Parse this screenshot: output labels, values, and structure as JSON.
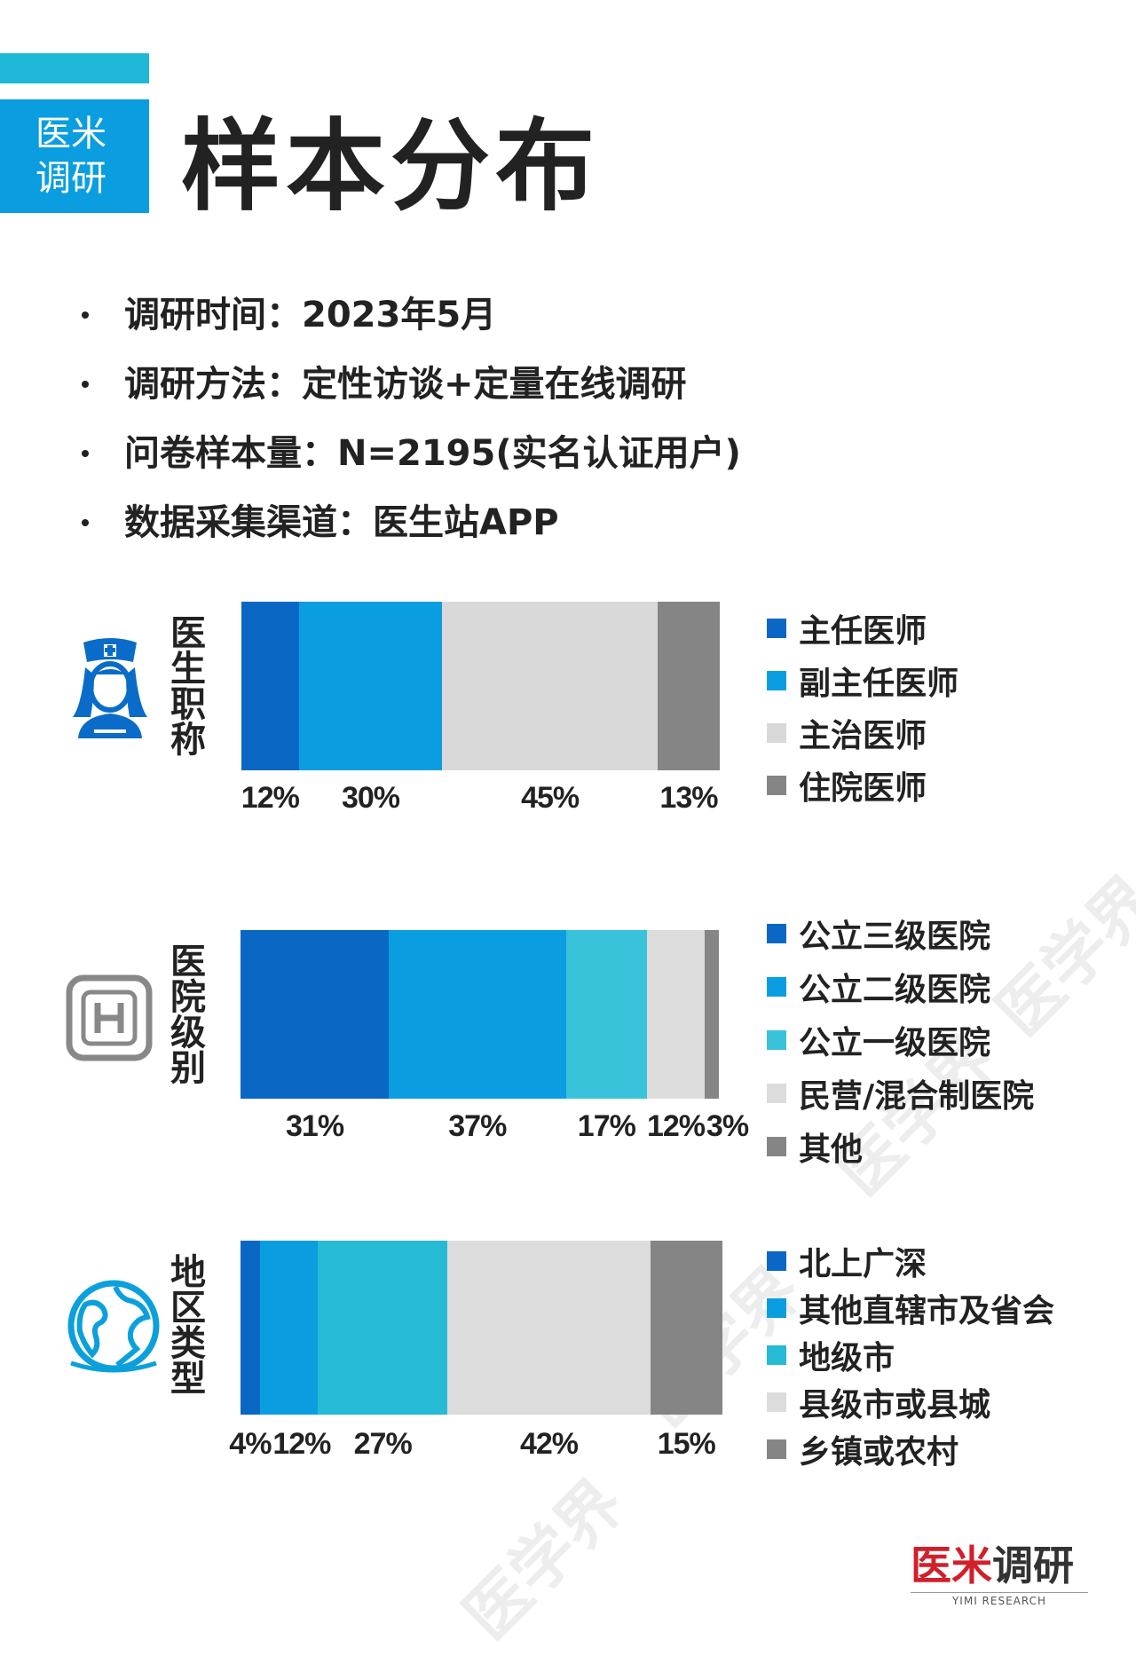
{
  "brand": {
    "line1": "医米",
    "line2": "调研"
  },
  "page_title": "样本分布",
  "info": [
    "调研时间：2023年5月",
    "调研方法：定性访谈+定量在线调研",
    "问卷样本量：N=2195(实名认证用户)",
    "数据采集渠道：医生站APP"
  ],
  "watermark_text": "医学界",
  "footer": {
    "logo_red": "医米",
    "logo_dark": "调研",
    "logo_sub": "YIMI RESEARCH"
  },
  "colors": {
    "brand_blue": "#0a9ee0",
    "accent_cyan": "#1fb8d8",
    "icon_blue": "#0a6cc8",
    "icon_gray": "#888888"
  },
  "icons": [
    "nurse-icon",
    "hospital-icon",
    "globe-icon"
  ],
  "chart_data": [
    {
      "type": "bar",
      "stacked": true,
      "orientation": "horizontal",
      "title": "医生职称",
      "icon": "nurse-icon",
      "series": [
        {
          "name": "主任医师",
          "value": 12,
          "label": "12%",
          "color": "#0a67c4"
        },
        {
          "name": "副主任医师",
          "value": 30,
          "label": "30%",
          "color": "#0a9ee0"
        },
        {
          "name": "主治医师",
          "value": 45,
          "label": "45%",
          "color": "#d9d9d9"
        },
        {
          "name": "住院医师",
          "value": 13,
          "label": "13%",
          "color": "#858585"
        }
      ]
    },
    {
      "type": "bar",
      "stacked": true,
      "orientation": "horizontal",
      "title": "医院级别",
      "icon": "hospital-icon",
      "series": [
        {
          "name": "公立三级医院",
          "value": 31,
          "label": "31%",
          "color": "#0a67c4"
        },
        {
          "name": "公立二级医院",
          "value": 37,
          "label": "37%",
          "color": "#0a9ee0"
        },
        {
          "name": "公立一级医院",
          "value": 17,
          "label": "17%",
          "color": "#38c3da"
        },
        {
          "name": "民营/混合制医院",
          "value": 12,
          "label": "12%",
          "color": "#dcdcdc"
        },
        {
          "name": "其他",
          "value": 3,
          "label": "3%",
          "color": "#858585"
        }
      ]
    },
    {
      "type": "bar",
      "stacked": true,
      "orientation": "horizontal",
      "title": "地区类型",
      "icon": "globe-icon",
      "series": [
        {
          "name": "北上广深",
          "value": 4,
          "label": "4%",
          "color": "#0a67c4"
        },
        {
          "name": "其他直辖市及省会",
          "value": 12,
          "label": "12%",
          "color": "#0a9ee0"
        },
        {
          "name": "地级市",
          "value": 27,
          "label": "27%",
          "color": "#26bad4"
        },
        {
          "name": "县级市或县城",
          "value": 42,
          "label": "42%",
          "color": "#dcdcdc"
        },
        {
          "name": "乡镇或农村",
          "value": 15,
          "label": "15%",
          "color": "#858585"
        }
      ]
    }
  ]
}
